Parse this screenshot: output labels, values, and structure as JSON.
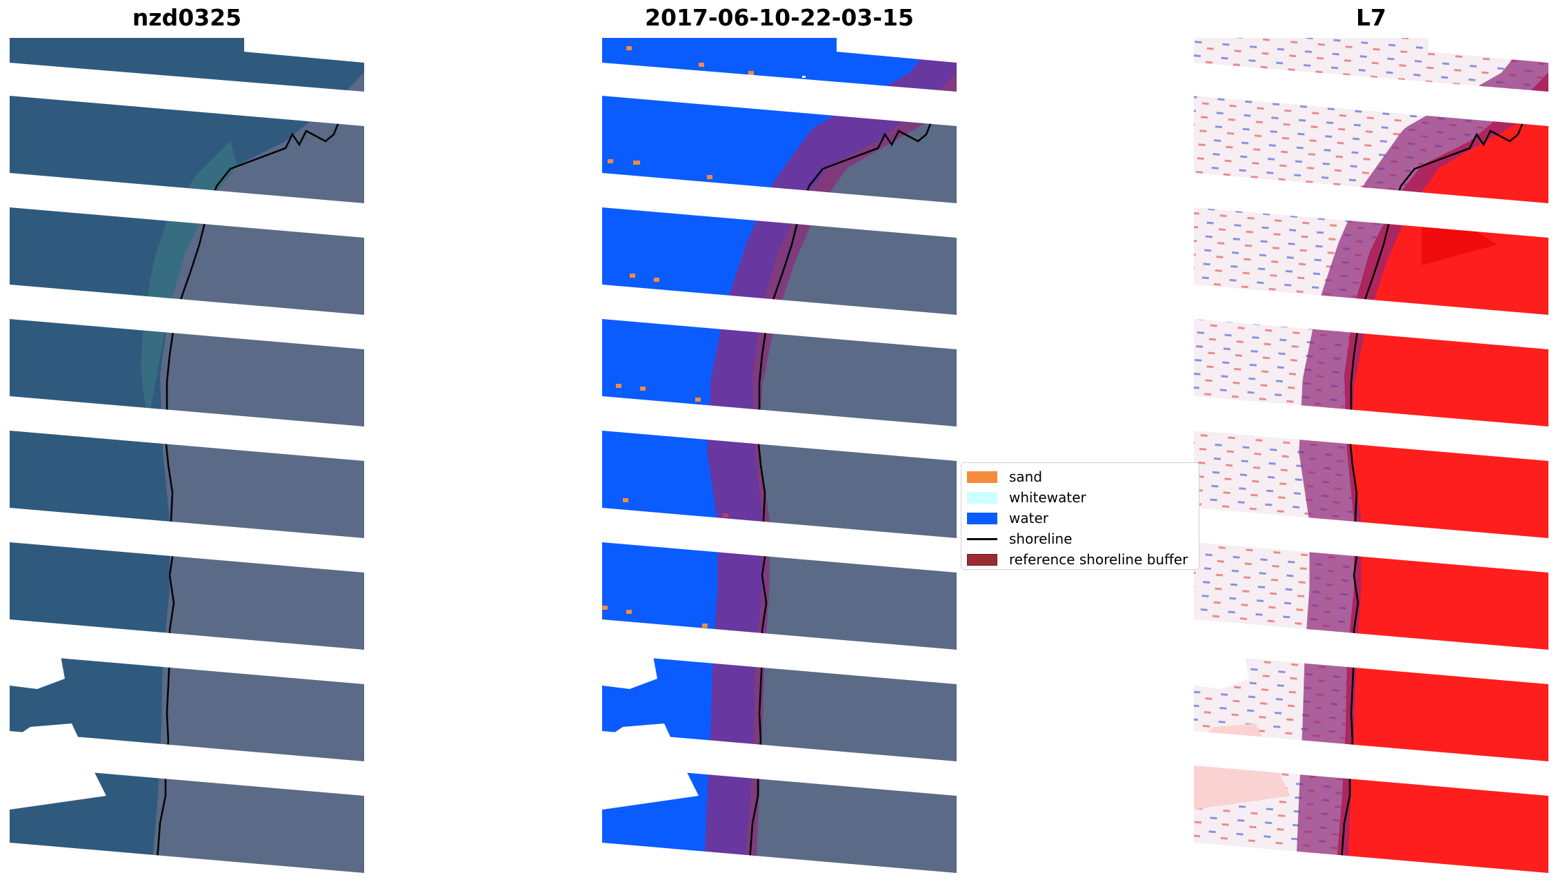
{
  "panels": [
    {
      "title": "nzd0325"
    },
    {
      "title": "2017-06-10-22-03-15"
    },
    {
      "title": "L7"
    }
  ],
  "legend": {
    "items": [
      {
        "label": "sand",
        "color": "#f58b3c",
        "kind": "patch"
      },
      {
        "label": "whitewater",
        "color": "#ccffff",
        "kind": "patch"
      },
      {
        "label": "water",
        "color": "#0a5cff",
        "kind": "patch"
      },
      {
        "label": "shoreline",
        "color": "#000000",
        "kind": "line"
      },
      {
        "label": "reference shoreline buffer",
        "color": "#9a2a33",
        "kind": "patch"
      }
    ]
  },
  "colors": {
    "rgb_water": "#2f5a7e",
    "rgb_land": "#5b6a86",
    "class_water": "#0a5cff",
    "class_sand": "#f58b3c",
    "buffer": "#8e2a7a",
    "index_land": "#ff1e1e",
    "index_water": "#f3e9ee"
  }
}
